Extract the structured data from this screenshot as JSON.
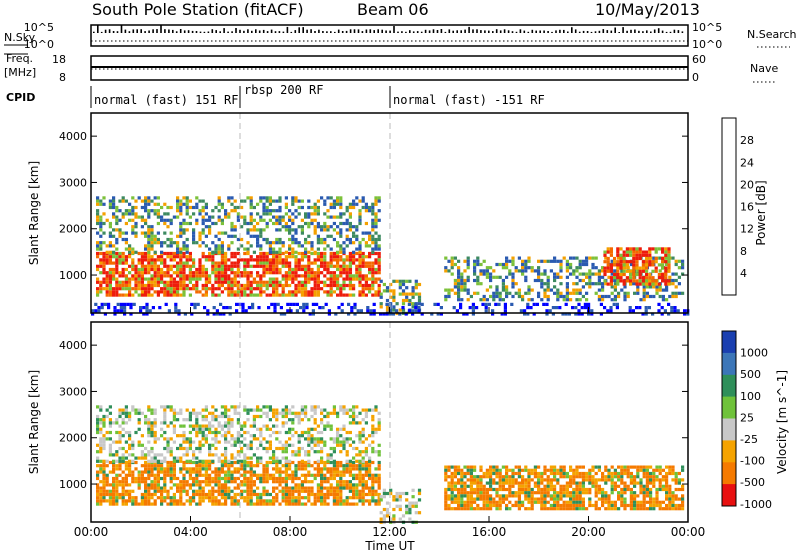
{
  "header": {
    "station": "South Pole Station (fitACF)",
    "beam": "Beam 06",
    "date": "10/May/2013"
  },
  "top_panels": {
    "nsky_label": "N.Sky",
    "nsky_ticks": [
      "10^5",
      "10^0"
    ],
    "nsearch_label": "N.Search",
    "nsearch_ticks": [
      "10^5",
      "10^0"
    ],
    "freq_label_1": "Freq.",
    "freq_label_2": "[MHz]",
    "freq_ticks": [
      "18",
      "8"
    ],
    "nave_label": "Nave",
    "nave_ticks": [
      "60",
      "0"
    ],
    "cpid_label": "CPID",
    "cpid_segments": [
      {
        "label": "normal (fast) 151 RF",
        "start_hour": 0
      },
      {
        "label": "rbsp 200 RF",
        "start_hour": 6
      },
      {
        "label": "normal (fast) -151 RF",
        "start_hour": 12
      }
    ]
  },
  "chart_data": [
    {
      "type": "heatmap",
      "parameter": "Power",
      "ylabel": "Slant Range [km]",
      "xlim_hours": [
        0,
        24
      ],
      "ylim": [
        180,
        4500
      ],
      "y_ticks": [
        "1000",
        "2000",
        "3000",
        "4000"
      ],
      "colorbar_label": "Power [dB]",
      "colorbar_ticks": [
        "4",
        "8",
        "12",
        "16",
        "20",
        "24",
        "28"
      ],
      "colors": [
        "#0000ff",
        "#2a5ab0",
        "#3d8a60",
        "#7cc13a",
        "#e8d400",
        "#f4a000",
        "#f56a00",
        "#ee1c0c"
      ],
      "regions": [
        {
          "t0": 0.2,
          "t1": 11.6,
          "r0": 600,
          "r1": 1500,
          "level": "high"
        },
        {
          "t0": 0.2,
          "t1": 11.6,
          "r0": 1500,
          "r1": 2700,
          "level": "medium"
        },
        {
          "t0": 11.6,
          "t1": 13.2,
          "r0": 180,
          "r1": 900,
          "level": "medium"
        },
        {
          "t0": 14.2,
          "t1": 23.8,
          "r0": 500,
          "r1": 1400,
          "level": "medium"
        },
        {
          "t0": 20.6,
          "t1": 23.2,
          "r0": 800,
          "r1": 1600,
          "level": "high"
        },
        {
          "t0": 0.0,
          "t1": 24.0,
          "r0": 180,
          "r1": 400,
          "level": "low"
        }
      ]
    },
    {
      "type": "heatmap",
      "parameter": "Velocity",
      "ylabel": "Slant Range [km]",
      "xlabel": "Time UT",
      "xlim_hours": [
        0,
        24
      ],
      "ylim": [
        180,
        4500
      ],
      "x_ticks": [
        "00:00",
        "04:00",
        "08:00",
        "12:00",
        "16:00",
        "20:00",
        "00:00"
      ],
      "y_ticks": [
        "1000",
        "2000",
        "3000",
        "4000"
      ],
      "colorbar_label": "Velocity [m s^-1]",
      "colorbar_ticks": [
        "1000",
        "500",
        "100",
        "25",
        "-25",
        "-100",
        "-500",
        "-1000"
      ],
      "colors": [
        "#1a3fb0",
        "#3c76b8",
        "#2f8f5a",
        "#6fc23a",
        "#c8c8c8",
        "#f5a300",
        "#f57a00",
        "#e81010"
      ],
      "regions": [
        {
          "t0": 0.2,
          "t1": 11.6,
          "r0": 600,
          "r1": 1500,
          "level": "receding"
        },
        {
          "t0": 0.2,
          "t1": 11.6,
          "r0": 1500,
          "r1": 2700,
          "level": "mixed"
        },
        {
          "t0": 11.6,
          "t1": 13.2,
          "r0": 180,
          "r1": 900,
          "level": "mixed"
        },
        {
          "t0": 14.2,
          "t1": 23.8,
          "r0": 500,
          "r1": 1400,
          "level": "receding"
        }
      ]
    }
  ],
  "time_axis_label": "Time UT"
}
